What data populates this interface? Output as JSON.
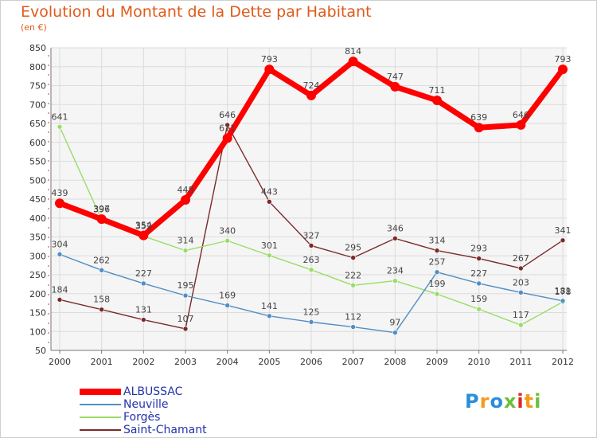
{
  "title": "Evolution du Montant de la Dette par Habitant",
  "subtitle": "(en €)",
  "logo": {
    "text": "Proxiti",
    "colors": [
      "#2a8fd8",
      "#f59a1b",
      "#2a8fd8",
      "#6cbf3a",
      "#d8282a",
      "#f59a1b",
      "#6cbf3a"
    ]
  },
  "chart_data": {
    "type": "line",
    "x": [
      "2000",
      "2001",
      "2002",
      "2003",
      "2004",
      "2005",
      "2006",
      "2007",
      "2008",
      "2009",
      "2010",
      "2011",
      "2012"
    ],
    "ylim": [
      50,
      850
    ],
    "yticks": [
      "50",
      "100",
      "150",
      "200",
      "250",
      "300",
      "350",
      "400",
      "450",
      "500",
      "550",
      "600",
      "650",
      "700",
      "750",
      "800",
      "850"
    ],
    "grid": true,
    "legend_position": "bottom-left",
    "series": [
      {
        "name": "ALBUSSAC",
        "color": "#ff0000",
        "values": [
          439,
          397,
          354,
          448,
          611,
          793,
          724,
          814,
          747,
          711,
          639,
          646,
          793
        ],
        "labels": [
          "439",
          "397",
          "354",
          "448",
          "611",
          "793",
          "724",
          "814",
          "747",
          "711",
          "639",
          "646",
          "793"
        ]
      },
      {
        "name": "Neuville",
        "color": "#4f8ec6",
        "values": [
          304,
          262,
          227,
          195,
          169,
          141,
          125,
          112,
          97,
          257,
          227,
          203,
          181
        ],
        "labels": [
          "304",
          "262",
          "227",
          "195",
          "169",
          "141",
          "125",
          "112",
          "97",
          "257",
          "227",
          "203",
          "181"
        ]
      },
      {
        "name": "Forgès",
        "color": "#99dd66",
        "values": [
          641,
          396,
          352,
          314,
          340,
          301,
          263,
          222,
          234,
          199,
          159,
          117,
          178
        ],
        "labels": [
          "641",
          "396",
          "352",
          "314",
          "340",
          "301",
          "263",
          "222",
          "234",
          "199",
          "159",
          "117",
          "178"
        ]
      },
      {
        "name": "Saint-Chamant",
        "color": "#7a2a2a",
        "values": [
          184,
          158,
          131,
          107,
          646,
          443,
          327,
          295,
          346,
          314,
          293,
          267,
          341
        ],
        "labels": [
          "184",
          "158",
          "131",
          "107",
          "646",
          "443",
          "327",
          "295",
          "346",
          "314",
          "293",
          "267",
          "341"
        ]
      }
    ]
  }
}
